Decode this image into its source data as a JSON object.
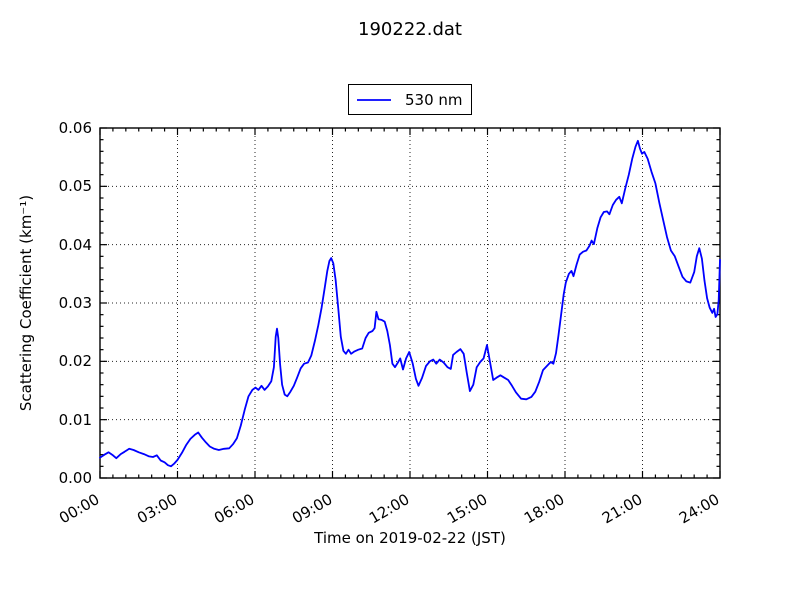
{
  "chart_data": {
    "type": "line",
    "title": "190222.dat",
    "xlabel": "Time on 2019-02-22 (JST)",
    "ylabel": "Scattering Coefficient (km⁻¹)",
    "xlim_hours": [
      0,
      24
    ],
    "ylim": [
      0,
      0.06
    ],
    "x_tick_hours": [
      0,
      3,
      6,
      9,
      12,
      15,
      18,
      21,
      24
    ],
    "x_tick_labels": [
      "00:00",
      "03:00",
      "06:00",
      "09:00",
      "12:00",
      "15:00",
      "18:00",
      "21:00",
      "24:00"
    ],
    "y_tick_values": [
      0,
      0.01,
      0.02,
      0.03,
      0.04,
      0.05,
      0.06
    ],
    "y_tick_labels": [
      "0.00",
      "0.01",
      "0.02",
      "0.03",
      "0.04",
      "0.05",
      "0.06"
    ],
    "x_minor_step_hours": 0.5,
    "y_minor_step": 0.002,
    "grid": {
      "which": "major",
      "style": "dotted",
      "color": "#000000"
    },
    "legend": {
      "position": "upper center, outside axes",
      "entries": [
        {
          "label": "530 nm",
          "color": "#0000ff"
        }
      ]
    },
    "series": [
      {
        "name": "530 nm",
        "color": "#0000ff",
        "x_unit": "hours JST",
        "points": [
          [
            0.0,
            0.0035
          ],
          [
            0.17,
            0.004
          ],
          [
            0.33,
            0.0044
          ],
          [
            0.5,
            0.0039
          ],
          [
            0.63,
            0.0034
          ],
          [
            0.8,
            0.0041
          ],
          [
            0.95,
            0.0045
          ],
          [
            1.13,
            0.005
          ],
          [
            1.3,
            0.0048
          ],
          [
            1.5,
            0.0044
          ],
          [
            1.7,
            0.0041
          ],
          [
            1.9,
            0.0037
          ],
          [
            2.05,
            0.0036
          ],
          [
            2.2,
            0.0039
          ],
          [
            2.35,
            0.003
          ],
          [
            2.5,
            0.0027
          ],
          [
            2.63,
            0.0022
          ],
          [
            2.75,
            0.002
          ],
          [
            2.88,
            0.0025
          ],
          [
            3.0,
            0.0031
          ],
          [
            3.17,
            0.0043
          ],
          [
            3.33,
            0.0056
          ],
          [
            3.5,
            0.0067
          ],
          [
            3.67,
            0.0074
          ],
          [
            3.8,
            0.0078
          ],
          [
            3.95,
            0.0069
          ],
          [
            4.1,
            0.0061
          ],
          [
            4.25,
            0.0054
          ],
          [
            4.42,
            0.005
          ],
          [
            4.6,
            0.0048
          ],
          [
            4.8,
            0.005
          ],
          [
            5.0,
            0.0051
          ],
          [
            5.15,
            0.0058
          ],
          [
            5.3,
            0.0068
          ],
          [
            5.45,
            0.009
          ],
          [
            5.6,
            0.0117
          ],
          [
            5.75,
            0.014
          ],
          [
            5.9,
            0.0151
          ],
          [
            6.02,
            0.0155
          ],
          [
            6.13,
            0.0151
          ],
          [
            6.25,
            0.0158
          ],
          [
            6.37,
            0.0151
          ],
          [
            6.5,
            0.0157
          ],
          [
            6.63,
            0.0166
          ],
          [
            6.73,
            0.019
          ],
          [
            6.8,
            0.0242
          ],
          [
            6.85,
            0.0256
          ],
          [
            6.9,
            0.024
          ],
          [
            6.97,
            0.0195
          ],
          [
            7.05,
            0.016
          ],
          [
            7.15,
            0.0143
          ],
          [
            7.25,
            0.014
          ],
          [
            7.37,
            0.0148
          ],
          [
            7.5,
            0.0158
          ],
          [
            7.63,
            0.0172
          ],
          [
            7.77,
            0.0188
          ],
          [
            7.9,
            0.0196
          ],
          [
            8.05,
            0.0198
          ],
          [
            8.18,
            0.021
          ],
          [
            8.32,
            0.0235
          ],
          [
            8.45,
            0.0262
          ],
          [
            8.58,
            0.0292
          ],
          [
            8.7,
            0.0327
          ],
          [
            8.8,
            0.0355
          ],
          [
            8.88,
            0.0372
          ],
          [
            8.95,
            0.0377
          ],
          [
            9.03,
            0.0368
          ],
          [
            9.12,
            0.034
          ],
          [
            9.22,
            0.0292
          ],
          [
            9.32,
            0.0242
          ],
          [
            9.42,
            0.0218
          ],
          [
            9.52,
            0.0213
          ],
          [
            9.62,
            0.022
          ],
          [
            9.72,
            0.0213
          ],
          [
            9.85,
            0.0217
          ],
          [
            10.0,
            0.022
          ],
          [
            10.15,
            0.0222
          ],
          [
            10.28,
            0.024
          ],
          [
            10.4,
            0.0249
          ],
          [
            10.55,
            0.0252
          ],
          [
            10.63,
            0.0257
          ],
          [
            10.7,
            0.0285
          ],
          [
            10.78,
            0.0272
          ],
          [
            10.9,
            0.0271
          ],
          [
            11.02,
            0.0268
          ],
          [
            11.12,
            0.0252
          ],
          [
            11.22,
            0.0228
          ],
          [
            11.32,
            0.0196
          ],
          [
            11.42,
            0.019
          ],
          [
            11.53,
            0.0198
          ],
          [
            11.62,
            0.0205
          ],
          [
            11.73,
            0.0186
          ],
          [
            11.85,
            0.0205
          ],
          [
            11.97,
            0.0216
          ],
          [
            12.1,
            0.0197
          ],
          [
            12.23,
            0.017
          ],
          [
            12.33,
            0.0158
          ],
          [
            12.47,
            0.0172
          ],
          [
            12.62,
            0.0192
          ],
          [
            12.77,
            0.02
          ],
          [
            12.9,
            0.0203
          ],
          [
            13.02,
            0.0196
          ],
          [
            13.15,
            0.0203
          ],
          [
            13.3,
            0.0198
          ],
          [
            13.45,
            0.019
          ],
          [
            13.58,
            0.0187
          ],
          [
            13.67,
            0.0211
          ],
          [
            13.8,
            0.0216
          ],
          [
            13.95,
            0.0221
          ],
          [
            14.08,
            0.0213
          ],
          [
            14.2,
            0.018
          ],
          [
            14.32,
            0.0149
          ],
          [
            14.45,
            0.016
          ],
          [
            14.58,
            0.019
          ],
          [
            14.72,
            0.0199
          ],
          [
            14.85,
            0.0205
          ],
          [
            14.98,
            0.0228
          ],
          [
            15.1,
            0.0198
          ],
          [
            15.22,
            0.0168
          ],
          [
            15.35,
            0.0172
          ],
          [
            15.5,
            0.0176
          ],
          [
            15.65,
            0.0172
          ],
          [
            15.8,
            0.0168
          ],
          [
            15.95,
            0.0158
          ],
          [
            16.1,
            0.0147
          ],
          [
            16.3,
            0.0136
          ],
          [
            16.5,
            0.0135
          ],
          [
            16.7,
            0.0139
          ],
          [
            16.85,
            0.0148
          ],
          [
            17.0,
            0.0165
          ],
          [
            17.15,
            0.0185
          ],
          [
            17.3,
            0.0192
          ],
          [
            17.45,
            0.0199
          ],
          [
            17.55,
            0.0196
          ],
          [
            17.65,
            0.0214
          ],
          [
            17.75,
            0.0245
          ],
          [
            17.85,
            0.028
          ],
          [
            17.95,
            0.0315
          ],
          [
            18.03,
            0.0335
          ],
          [
            18.15,
            0.035
          ],
          [
            18.25,
            0.0355
          ],
          [
            18.33,
            0.0346
          ],
          [
            18.45,
            0.0366
          ],
          [
            18.57,
            0.0383
          ],
          [
            18.7,
            0.0388
          ],
          [
            18.83,
            0.039
          ],
          [
            18.95,
            0.0398
          ],
          [
            19.03,
            0.0407
          ],
          [
            19.12,
            0.0401
          ],
          [
            19.25,
            0.0428
          ],
          [
            19.38,
            0.0447
          ],
          [
            19.5,
            0.0456
          ],
          [
            19.63,
            0.0457
          ],
          [
            19.72,
            0.0452
          ],
          [
            19.85,
            0.0468
          ],
          [
            19.98,
            0.0477
          ],
          [
            20.1,
            0.0482
          ],
          [
            20.2,
            0.0471
          ],
          [
            20.33,
            0.0496
          ],
          [
            20.47,
            0.052
          ],
          [
            20.6,
            0.0547
          ],
          [
            20.73,
            0.0568
          ],
          [
            20.82,
            0.0578
          ],
          [
            20.9,
            0.0565
          ],
          [
            20.98,
            0.0556
          ],
          [
            21.07,
            0.0559
          ],
          [
            21.2,
            0.0547
          ],
          [
            21.35,
            0.0525
          ],
          [
            21.5,
            0.0505
          ],
          [
            21.65,
            0.0472
          ],
          [
            21.8,
            0.0442
          ],
          [
            21.95,
            0.0413
          ],
          [
            22.1,
            0.039
          ],
          [
            22.25,
            0.038
          ],
          [
            22.4,
            0.0362
          ],
          [
            22.55,
            0.0345
          ],
          [
            22.7,
            0.0337
          ],
          [
            22.85,
            0.0335
          ],
          [
            23.0,
            0.0353
          ],
          [
            23.1,
            0.038
          ],
          [
            23.2,
            0.0394
          ],
          [
            23.3,
            0.0376
          ],
          [
            23.4,
            0.0338
          ],
          [
            23.5,
            0.0308
          ],
          [
            23.6,
            0.0292
          ],
          [
            23.7,
            0.0283
          ],
          [
            23.77,
            0.029
          ],
          [
            23.83,
            0.0276
          ],
          [
            23.9,
            0.0281
          ],
          [
            23.95,
            0.0305
          ],
          [
            24.0,
            0.0374
          ]
        ]
      }
    ]
  }
}
